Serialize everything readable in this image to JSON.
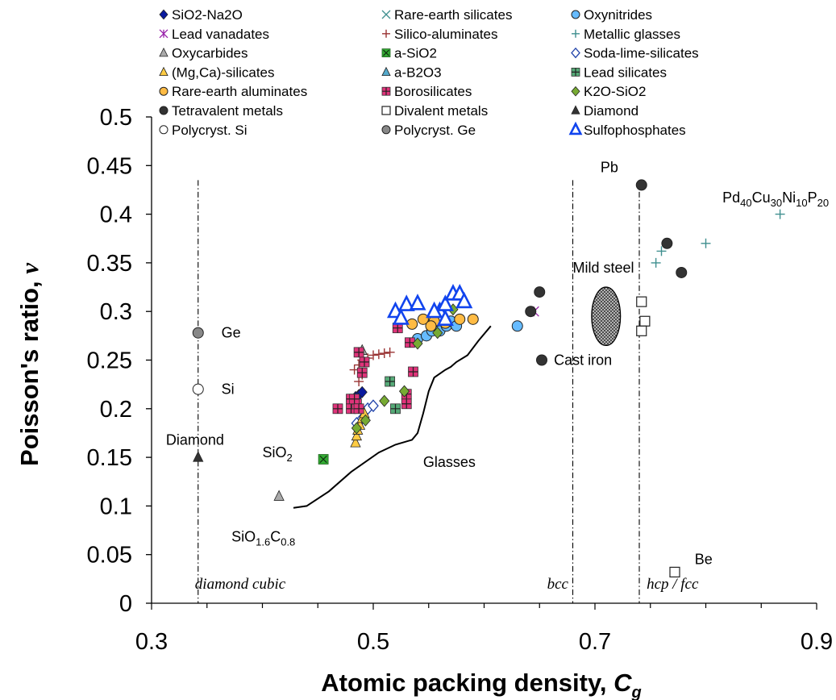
{
  "chart_data": {
    "type": "scatter",
    "title": "",
    "xlabel": "Atomic packing density, ",
    "xlabel_symbol": "C",
    "xlabel_sub": "g",
    "ylabel": "Poisson's ratio, ",
    "ylabel_symbol": "ν",
    "xlim": [
      0.3,
      0.9
    ],
    "ylim": [
      0,
      0.5
    ],
    "xticks": [
      "0.3",
      "0.5",
      "0.7",
      "0.9"
    ],
    "yticks": [
      "0",
      "0.05",
      "0.1",
      "0.15",
      "0.2",
      "0.25",
      "0.3",
      "0.35",
      "0.4",
      "0.45",
      "0.5"
    ],
    "grid": false,
    "legend_position": "top",
    "series": [
      {
        "name": "SiO2-Na2O",
        "marker": "diamond",
        "color": "#0a1a9e",
        "points": [
          [
            0.48,
            0.208
          ],
          [
            0.484,
            0.212
          ],
          [
            0.487,
            0.214
          ],
          [
            0.49,
            0.217
          ]
        ]
      },
      {
        "name": "Rare-earth silicates",
        "marker": "x",
        "color": "#3f8f8f",
        "points": []
      },
      {
        "name": "Oxynitrides",
        "marker": "circle",
        "color": "#66bbff",
        "points": [
          [
            0.63,
            0.285
          ],
          [
            0.54,
            0.272
          ],
          [
            0.548,
            0.275
          ],
          [
            0.553,
            0.28
          ],
          [
            0.56,
            0.28
          ],
          [
            0.566,
            0.285
          ],
          [
            0.57,
            0.29
          ],
          [
            0.575,
            0.285
          ]
        ]
      },
      {
        "name": "Lead vanadates",
        "marker": "star",
        "color": "#9922aa",
        "points": [
          [
            0.645,
            0.3
          ]
        ]
      },
      {
        "name": "Silico-aluminates",
        "marker": "plus",
        "color": "#993333",
        "points": [
          [
            0.483,
            0.24
          ],
          [
            0.487,
            0.245
          ],
          [
            0.49,
            0.25
          ],
          [
            0.495,
            0.252
          ],
          [
            0.5,
            0.255
          ],
          [
            0.505,
            0.256
          ],
          [
            0.51,
            0.257
          ],
          [
            0.515,
            0.258
          ],
          [
            0.487,
            0.228
          ],
          [
            0.49,
            0.235
          ]
        ]
      },
      {
        "name": "Metallic glasses",
        "marker": "plus",
        "color": "#3f8f8f",
        "points": [
          [
            0.867,
            0.4
          ],
          [
            0.8,
            0.37
          ],
          [
            0.76,
            0.362
          ],
          [
            0.755,
            0.35
          ]
        ]
      },
      {
        "name": "Oxycarbides",
        "marker": "triangle",
        "color": "#aaaaaa",
        "points": [
          [
            0.415,
            0.11
          ],
          [
            0.49,
            0.26
          ]
        ]
      },
      {
        "name": "a-SiO2",
        "marker": "xsquare",
        "color": "#33aa33",
        "points": [
          [
            0.455,
            0.148
          ]
        ]
      },
      {
        "name": "Soda-lime-silicates",
        "marker": "odiamond",
        "color": "#2244aa",
        "points": [
          [
            0.49,
            0.19
          ],
          [
            0.495,
            0.2
          ],
          [
            0.5,
            0.203
          ],
          [
            0.485,
            0.185
          ]
        ]
      },
      {
        "name": "(Mg,Ca)-silicates",
        "marker": "triangle",
        "color": "#ffcc44",
        "points": [
          [
            0.484,
            0.165
          ],
          [
            0.485,
            0.172
          ],
          [
            0.486,
            0.178
          ],
          [
            0.488,
            0.183
          ],
          [
            0.49,
            0.19
          ],
          [
            0.492,
            0.195
          ]
        ]
      },
      {
        "name": "a-B2O3",
        "marker": "triangle",
        "color": "#55aacc",
        "points": []
      },
      {
        "name": "Lead silicates",
        "marker": "psquare",
        "color": "#55aa77",
        "points": [
          [
            0.515,
            0.228
          ],
          [
            0.52,
            0.2
          ]
        ]
      },
      {
        "name": "Rare-earth aluminates",
        "marker": "circle",
        "color": "#ffbb44",
        "points": [
          [
            0.535,
            0.287
          ],
          [
            0.545,
            0.292
          ],
          [
            0.555,
            0.29
          ],
          [
            0.565,
            0.288
          ],
          [
            0.578,
            0.292
          ],
          [
            0.59,
            0.292
          ],
          [
            0.552,
            0.285
          ]
        ]
      },
      {
        "name": "Borosilicates",
        "marker": "psquare",
        "color": "#e0337a",
        "points": [
          [
            0.468,
            0.2
          ],
          [
            0.48,
            0.2
          ],
          [
            0.485,
            0.205
          ],
          [
            0.48,
            0.21
          ],
          [
            0.483,
            0.21
          ],
          [
            0.487,
            0.2
          ],
          [
            0.49,
            0.237
          ],
          [
            0.487,
            0.258
          ],
          [
            0.492,
            0.248
          ],
          [
            0.522,
            0.283
          ],
          [
            0.533,
            0.268
          ],
          [
            0.536,
            0.238
          ],
          [
            0.53,
            0.205
          ],
          [
            0.53,
            0.215
          ]
        ]
      },
      {
        "name": "K2O-SiO2",
        "marker": "diamond",
        "color": "#77aa33",
        "points": [
          [
            0.485,
            0.18
          ],
          [
            0.493,
            0.188
          ],
          [
            0.51,
            0.208
          ],
          [
            0.528,
            0.218
          ],
          [
            0.54,
            0.267
          ],
          [
            0.558,
            0.278
          ],
          [
            0.572,
            0.302
          ]
        ]
      },
      {
        "name": "Tetravalent metals",
        "marker": "circle",
        "color": "#333333",
        "points": [
          [
            0.742,
            0.43
          ],
          [
            0.765,
            0.37
          ],
          [
            0.778,
            0.34
          ],
          [
            0.65,
            0.32
          ],
          [
            0.642,
            0.3
          ],
          [
            0.652,
            0.25
          ]
        ]
      },
      {
        "name": "Divalent metals",
        "marker": "square",
        "color": "#ffffff",
        "points": [
          [
            0.742,
            0.31
          ],
          [
            0.745,
            0.29
          ],
          [
            0.742,
            0.28
          ],
          [
            0.772,
            0.032
          ]
        ]
      },
      {
        "name": "Diamond",
        "marker": "triangle",
        "color": "#333333",
        "points": [
          [
            0.342,
            0.15
          ]
        ]
      },
      {
        "name": "Polycryst. Si",
        "marker": "circle",
        "color": "#ffffff",
        "points": [
          [
            0.342,
            0.22
          ]
        ]
      },
      {
        "name": "Polycryst. Ge",
        "marker": "circle",
        "color": "#888888",
        "points": [
          [
            0.342,
            0.278
          ]
        ]
      },
      {
        "name": "Sulfophosphates",
        "marker": "otriangle",
        "color": "#1144ee",
        "points": [
          [
            0.52,
            0.3
          ],
          [
            0.53,
            0.307
          ],
          [
            0.54,
            0.308
          ],
          [
            0.525,
            0.293
          ],
          [
            0.56,
            0.3
          ],
          [
            0.565,
            0.307
          ],
          [
            0.572,
            0.318
          ],
          [
            0.578,
            0.318
          ],
          [
            0.582,
            0.31
          ],
          [
            0.565,
            0.292
          ],
          [
            0.555,
            0.3
          ]
        ]
      }
    ],
    "glasses_curve": [
      [
        0.428,
        0.098
      ],
      [
        0.44,
        0.1
      ],
      [
        0.46,
        0.115
      ],
      [
        0.48,
        0.135
      ],
      [
        0.505,
        0.155
      ],
      [
        0.52,
        0.163
      ],
      [
        0.535,
        0.168
      ],
      [
        0.54,
        0.175
      ],
      [
        0.545,
        0.195
      ],
      [
        0.55,
        0.218
      ],
      [
        0.555,
        0.232
      ],
      [
        0.565,
        0.24
      ],
      [
        0.57,
        0.243
      ],
      [
        0.575,
        0.248
      ],
      [
        0.585,
        0.255
      ],
      [
        0.595,
        0.27
      ],
      [
        0.606,
        0.285
      ]
    ],
    "reference_lines": [
      {
        "x": 0.342,
        "label": "diamond cubic"
      },
      {
        "x": 0.68,
        "label": "bcc"
      },
      {
        "x": 0.74,
        "label": "hcp / fcc"
      }
    ],
    "ellipse": {
      "label": "Mild steel",
      "cx": 0.71,
      "cy": 0.295,
      "rx": 0.013,
      "ry": 0.03
    },
    "annotations": [
      {
        "text": "Ge",
        "x": 0.363,
        "y": 0.278
      },
      {
        "text": "Si",
        "x": 0.363,
        "y": 0.22
      },
      {
        "text": "Diamond",
        "x": 0.313,
        "y": 0.168
      },
      {
        "text": "Glasses",
        "x": 0.545,
        "y": 0.145
      },
      {
        "text": "Cast iron",
        "x": 0.663,
        "y": 0.25
      },
      {
        "text": "Pb",
        "x": 0.705,
        "y": 0.448
      },
      {
        "text": "Be",
        "x": 0.79,
        "y": 0.045
      }
    ],
    "label_sio2": {
      "base": "SiO",
      "sub": "2",
      "x": 0.4,
      "y": 0.15
    },
    "label_sioc": {
      "p1": "SiO",
      "s1": "1.6",
      "p2": "C",
      "s2": "0.8",
      "x": 0.383,
      "y": 0.08
    },
    "label_pd": {
      "p1": "Pd",
      "s1": "40",
      "p2": "Cu",
      "s2": "30",
      "p3": "Ni",
      "s3": "10",
      "p4": "P",
      "s4": "20",
      "x": 0.815,
      "y": 0.412
    }
  }
}
